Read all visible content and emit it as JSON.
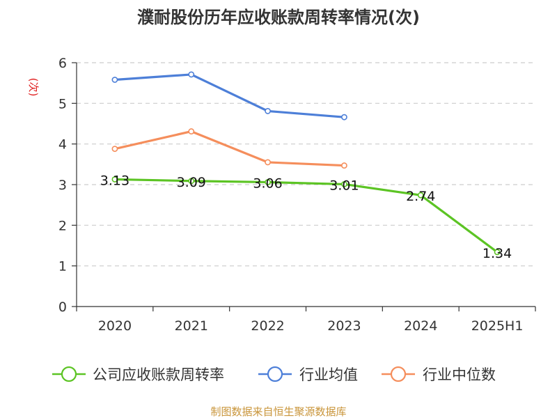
{
  "chart_data": {
    "type": "line",
    "title": "濮耐股份历年应收账款周转率情况(次)",
    "ylabel": "(次)",
    "categories": [
      "2020",
      "2021",
      "2022",
      "2023",
      "2024",
      "2025H1"
    ],
    "ylim": [
      0,
      6
    ],
    "yticks": [
      0,
      1,
      2,
      3,
      4,
      5,
      6
    ],
    "grid": true,
    "legend_position": "bottom",
    "series": [
      {
        "name": "公司应收账款周转率",
        "color": "#5cc424",
        "values": [
          3.13,
          3.09,
          3.06,
          3.01,
          2.74,
          1.34
        ],
        "labels": [
          "3.13",
          "3.09",
          "3.06",
          "3.01",
          "2.74",
          "1.34"
        ]
      },
      {
        "name": "行业均值",
        "color": "#4d7fd8",
        "values": [
          5.58,
          5.71,
          4.81,
          4.66,
          null,
          null
        ]
      },
      {
        "name": "行业中位数",
        "color": "#f58e5c",
        "values": [
          3.88,
          4.31,
          3.55,
          3.47,
          null,
          null
        ]
      }
    ]
  },
  "source": "制图数据来自恒生聚源数据库"
}
